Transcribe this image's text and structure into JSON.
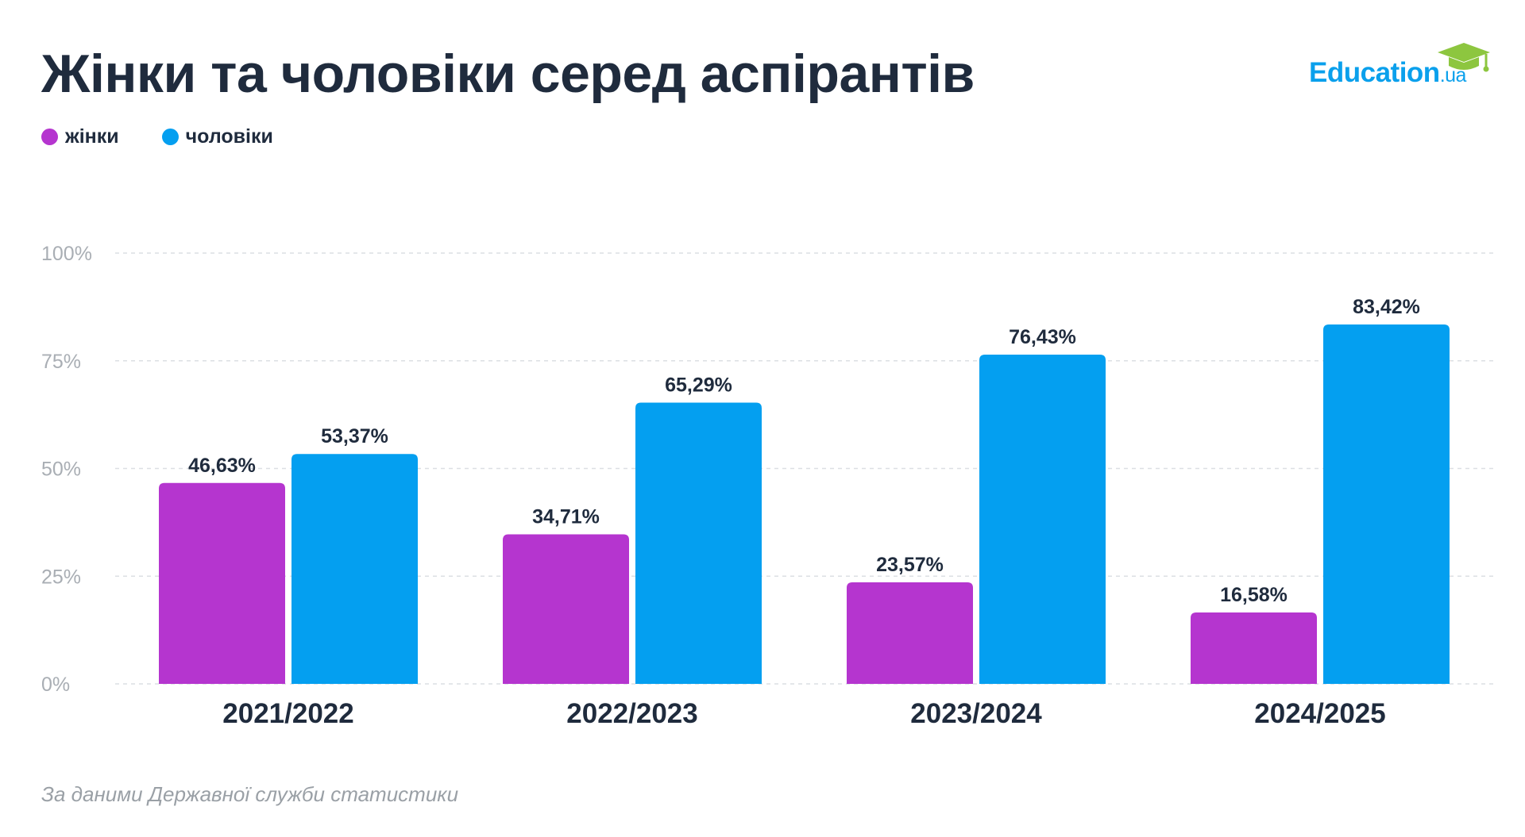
{
  "title": "Жінки та чоловіки серед аспірантів",
  "source": "За даними Державної служби статистики",
  "logo": {
    "main": "Education",
    "suffix": ".ua",
    "icon": "graduation-cap-icon",
    "color": "#0aa0ec",
    "cap_color": "#8dc63f"
  },
  "legend": [
    {
      "label": "жінки",
      "color": "#b535cf"
    },
    {
      "label": "чоловіки",
      "color": "#049ff0"
    }
  ],
  "chart_data": {
    "type": "bar",
    "title": "Жінки та чоловіки серед аспірантів",
    "xlabel": "",
    "ylabel": "",
    "categories": [
      "2021/2022",
      "2022/2023",
      "2023/2024",
      "2024/2025"
    ],
    "series": [
      {
        "name": "жінки",
        "color": "#b535cf",
        "values": [
          46.63,
          34.71,
          23.57,
          16.58
        ],
        "labels": [
          "46,63%",
          "34,71%",
          "23,57%",
          "16,58%"
        ]
      },
      {
        "name": "чоловіки",
        "color": "#049ff0",
        "values": [
          53.37,
          65.29,
          76.43,
          83.42
        ],
        "labels": [
          "53,37%",
          "65,29%",
          "76,43%",
          "83,42%"
        ]
      }
    ],
    "ylim": [
      0,
      100
    ],
    "yticks": [
      0,
      25,
      50,
      75,
      100
    ],
    "ytick_labels": [
      "0%",
      "25%",
      "50%",
      "75%",
      "100%"
    ],
    "grid": true,
    "grid_style": "dashed",
    "legend_position": "top-left"
  }
}
